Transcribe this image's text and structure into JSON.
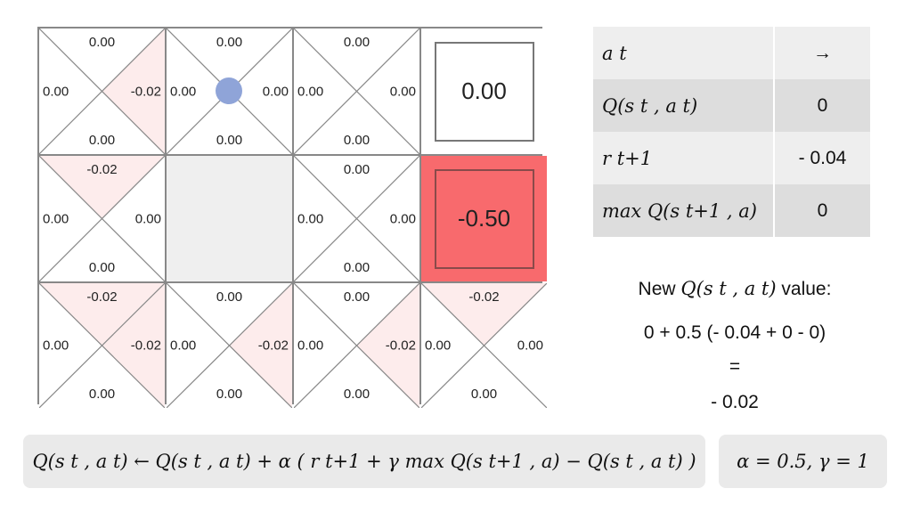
{
  "grid": {
    "cells": [
      {
        "type": "normal",
        "top": "0.00",
        "left": "0.00",
        "right": "-0.02",
        "bottom": "0.00",
        "hl": "right"
      },
      {
        "type": "normal",
        "top": "0.00",
        "left": "0.00",
        "right": "0.00",
        "bottom": "0.00",
        "hl": "",
        "agent": true
      },
      {
        "type": "normal",
        "top": "0.00",
        "left": "0.00",
        "right": "0.00",
        "bottom": "0.00",
        "hl": ""
      },
      {
        "type": "terminal",
        "value": "0.00",
        "color": "#ffffff"
      },
      {
        "type": "normal",
        "top": "-0.02",
        "left": "0.00",
        "right": "0.00",
        "bottom": "0.00",
        "hl": "top"
      },
      {
        "type": "wall"
      },
      {
        "type": "normal",
        "top": "0.00",
        "left": "0.00",
        "right": "0.00",
        "bottom": "0.00",
        "hl": ""
      },
      {
        "type": "terminal",
        "value": "-0.50",
        "color": "#f86a6d"
      },
      {
        "type": "normal",
        "top": "-0.02",
        "left": "0.00",
        "right": "-0.02",
        "bottom": "0.00",
        "hl": "top,right"
      },
      {
        "type": "normal",
        "top": "0.00",
        "left": "0.00",
        "right": "-0.02",
        "bottom": "0.00",
        "hl": "right"
      },
      {
        "type": "normal",
        "top": "0.00",
        "left": "0.00",
        "right": "-0.02",
        "bottom": "0.00",
        "hl": "right"
      },
      {
        "type": "normal",
        "top": "-0.02",
        "left": "0.00",
        "right": "0.00",
        "bottom": "0.00",
        "hl": "top"
      }
    ],
    "highlight_color": "#fdecec"
  },
  "table": {
    "rows": [
      {
        "label": "a t",
        "value": "→"
      },
      {
        "label": "Q(s t , a t)",
        "value": "0"
      },
      {
        "label": "r t+1",
        "value": "- 0.04"
      },
      {
        "label": "max Q(s t+1 , a)",
        "value": "0"
      }
    ]
  },
  "calc": {
    "heading_prefix": "New",
    "heading_math": "Q(s t , a t)",
    "heading_suffix": "value:",
    "line1": "0 + 0.5 (- 0.04 + 0 - 0)",
    "line2": "=",
    "line3": "- 0.02"
  },
  "formula": "Q(s t , a t)  ← Q(s t , a t) + α ( r t+1 + γ max Q(s t+1 , a) − Q(s t , a t) )",
  "params": "α = 0.5,  γ = 1"
}
